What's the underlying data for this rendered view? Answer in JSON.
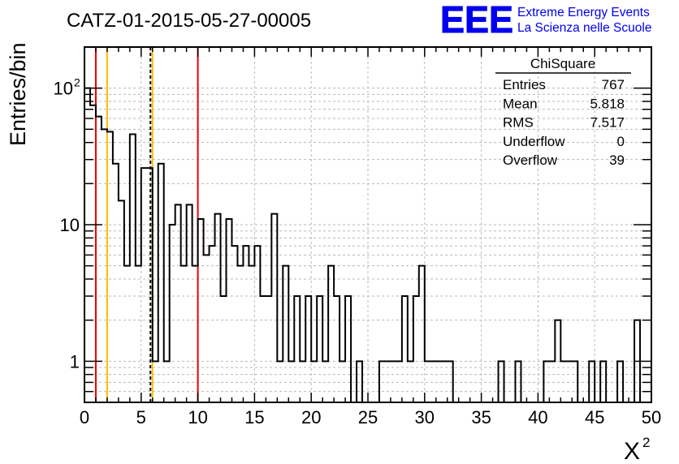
{
  "header": {
    "run_title": "CATZ-01-2015-05-27-00005",
    "logo_text": "EEE",
    "logo_line1": "Extreme Energy Events",
    "logo_line2": "La Scienza nelle Scuole",
    "logo_color": "#0000ee"
  },
  "stats_box": {
    "title": "ChiSquare",
    "rows": [
      {
        "label": "Entries",
        "value": "767"
      },
      {
        "label": "Mean",
        "value": "5.818"
      },
      {
        "label": "RMS",
        "value": "7.517"
      },
      {
        "label": "Underflow",
        "value": "0"
      },
      {
        "label": "Overflow",
        "value": "39"
      }
    ]
  },
  "chart_data": {
    "type": "bar",
    "histogram": true,
    "title": "CATZ-01-2015-05-27-00005",
    "xlabel": "X",
    "xlabel_superscript": "2",
    "ylabel": "Entries/bin",
    "xlim": [
      0,
      50
    ],
    "ylim": [
      0.5,
      200
    ],
    "yscale": "log",
    "bin_width": 0.5,
    "grid": true,
    "x_ticks": [
      0,
      5,
      10,
      15,
      20,
      25,
      30,
      35,
      40,
      45,
      50
    ],
    "y_ticks": [
      {
        "value": 1,
        "base": "1",
        "exp": ""
      },
      {
        "value": 10,
        "base": "10",
        "exp": ""
      },
      {
        "value": 100,
        "base": "10",
        "exp": "2"
      }
    ],
    "values": [
      100,
      75,
      62,
      50,
      48,
      28,
      15,
      5,
      46,
      5,
      26,
      26,
      1,
      28,
      1,
      10,
      14,
      5,
      14,
      5,
      11,
      6,
      7,
      12,
      3,
      11,
      7,
      5,
      7,
      5,
      7,
      3,
      3,
      12,
      1,
      5,
      1,
      3,
      1,
      3,
      1,
      3,
      1,
      5,
      3,
      1,
      3,
      0.5,
      1,
      0.5,
      0.5,
      0.5,
      1,
      1,
      1,
      1,
      3,
      1,
      3,
      5,
      1,
      1,
      1,
      1,
      1,
      0.5,
      0.5,
      0.5,
      0.5,
      0.5,
      0.5,
      0.5,
      0.5,
      1,
      0.5,
      0.5,
      1,
      0.5,
      0.5,
      0.5,
      0.5,
      1,
      1,
      2,
      1,
      1,
      1,
      0.5,
      0.5,
      1,
      0.5,
      1,
      0.5,
      0.5,
      1,
      0.5,
      0.5,
      2,
      0.5,
      0.5
    ],
    "vertical_lines": [
      {
        "x": 1.0,
        "color": "#ee0000",
        "style": "solid"
      },
      {
        "x": 2.0,
        "color": "#ffbb00",
        "style": "solid"
      },
      {
        "x": 5.82,
        "color": "#000000",
        "style": "dashed"
      },
      {
        "x": 6.0,
        "color": "#ffbb00",
        "style": "solid"
      },
      {
        "x": 10.0,
        "color": "#ee0000",
        "style": "solid"
      }
    ]
  }
}
